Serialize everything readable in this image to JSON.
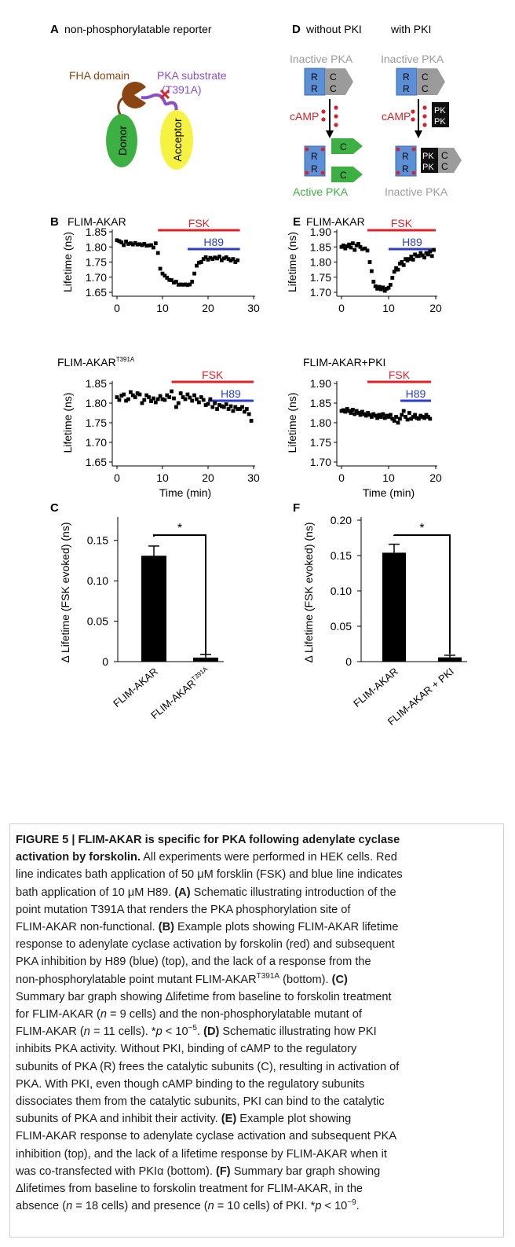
{
  "figure": {
    "panelA": {
      "letter": "A",
      "title": "non-phosphorylatable reporter",
      "fha_label": "FHA domain",
      "pka_label": "PKA substrate",
      "mutation_label": "(T391A)",
      "donor_label": "Donor",
      "acceptor_label": "Acceptor",
      "colors": {
        "donor": "#3cb043",
        "acceptor": "#f5f242",
        "fha": "#8b4513",
        "linker": "#8a4fc7",
        "mutation": "#d6232a"
      }
    },
    "panelD": {
      "letter": "D",
      "title_left": "without PKI",
      "title_right": "with PKI",
      "inactive_pka_left": "Inactive PKA",
      "inactive_pka_right": "Inactive PKA",
      "camp_left": "cAMP",
      "camp_right": "cAMP",
      "active_pka": "Active PKA",
      "inactive_pka_bottom": "Inactive PKA",
      "r_label": "R",
      "c_label": "C",
      "pk_label": "PK",
      "pki_label": "PKI",
      "colors": {
        "r_box": "#5b8fd6",
        "c_gray": "#9b9b9b",
        "c_green": "#3cb043",
        "pki_box": "#111111",
        "camp": "#d6232a",
        "active": "#3cb043",
        "inactive": "#9b9b9b"
      }
    },
    "panelB": {
      "letter": "B"
    },
    "panelE": {
      "letter": "E"
    },
    "panelC": {
      "letter": "C",
      "star": "*"
    },
    "panelF": {
      "letter": "F",
      "star": "*"
    },
    "colors": {
      "fsk": "#e0222b",
      "h89": "#2b3fc8"
    }
  },
  "chart_data": [
    {
      "id": "B-top",
      "type": "scatter",
      "title": "FLIM-AKAR",
      "ylabel": "Lifetime (ns)",
      "xlabel": "",
      "xlim": [
        0,
        30
      ],
      "ylim": [
        1.65,
        1.85
      ],
      "xticks": [
        "0",
        "10",
        "20",
        "30"
      ],
      "yticks": [
        "1.65",
        "1.70",
        "1.75",
        "1.80",
        "1.85"
      ],
      "bars": [
        {
          "label": "FSK",
          "from": 9,
          "to": 27
        },
        {
          "label": "H89",
          "from": 15.5,
          "to": 27
        }
      ],
      "x": [
        0,
        0.5,
        1,
        1.5,
        2,
        2.5,
        3,
        3.5,
        4,
        4.5,
        5,
        5.5,
        6,
        6.5,
        7,
        7.5,
        8,
        8.5,
        9,
        9.5,
        10,
        10.5,
        11,
        11.5,
        12,
        12.5,
        13,
        13.5,
        14,
        14.5,
        15,
        15.5,
        16,
        16.5,
        17,
        17.5,
        18,
        18.5,
        19,
        19.5,
        20,
        20.5,
        21,
        21.5,
        22,
        22.5,
        23,
        23.5,
        24,
        24.5,
        25,
        25.5,
        26,
        26.5
      ],
      "y": [
        1.822,
        1.819,
        1.815,
        1.806,
        1.818,
        1.81,
        1.812,
        1.808,
        1.813,
        1.808,
        1.809,
        1.806,
        1.81,
        1.804,
        1.805,
        1.806,
        1.798,
        1.812,
        1.78,
        1.728,
        1.712,
        1.705,
        1.698,
        1.691,
        1.69,
        1.682,
        1.685,
        1.675,
        1.676,
        1.675,
        1.676,
        1.674,
        1.676,
        1.685,
        1.712,
        1.738,
        1.748,
        1.75,
        1.76,
        1.766,
        1.758,
        1.764,
        1.76,
        1.765,
        1.762,
        1.768,
        1.756,
        1.762,
        1.766,
        1.76,
        1.755,
        1.76,
        1.75,
        1.756
      ]
    },
    {
      "id": "B-bottom",
      "type": "scatter",
      "title": "FLIM-AKAR",
      "title_sup": "T391A",
      "ylabel": "Lifetime (ns)",
      "xlabel": "Time (min)",
      "xlim": [
        0,
        30
      ],
      "ylim": [
        1.65,
        1.85
      ],
      "xticks": [
        "0",
        "10",
        "20",
        "30"
      ],
      "yticks": [
        "1.65",
        "1.70",
        "1.75",
        "1.80",
        "1.85"
      ],
      "bars": [
        {
          "label": "FSK",
          "from": 12,
          "to": 30
        },
        {
          "label": "H89",
          "from": 20,
          "to": 30
        }
      ],
      "x": [
        0,
        0.5,
        1,
        1.5,
        2,
        2.5,
        3,
        3.5,
        4,
        4.5,
        5,
        5.5,
        6,
        6.5,
        7,
        7.5,
        8,
        8.5,
        9,
        9.5,
        10,
        10.5,
        11,
        11.5,
        12,
        12.5,
        13,
        13.5,
        14,
        14.5,
        15,
        15.5,
        16,
        16.5,
        17,
        17.5,
        18,
        18.5,
        19,
        19.5,
        20,
        20.5,
        21,
        21.5,
        22,
        22.5,
        23,
        23.5,
        24,
        24.5,
        25,
        25.5,
        26,
        26.5,
        27,
        27.5,
        28,
        28.5,
        29,
        29.5
      ],
      "y": [
        1.815,
        1.808,
        1.819,
        1.822,
        1.806,
        1.81,
        1.828,
        1.82,
        1.815,
        1.825,
        1.822,
        1.8,
        1.808,
        1.82,
        1.815,
        1.805,
        1.812,
        1.802,
        1.81,
        1.818,
        1.81,
        1.808,
        1.82,
        1.815,
        1.83,
        1.812,
        1.79,
        1.8,
        1.825,
        1.815,
        1.81,
        1.822,
        1.814,
        1.806,
        1.82,
        1.81,
        1.802,
        1.815,
        1.808,
        1.795,
        1.798,
        1.81,
        1.79,
        1.8,
        1.785,
        1.795,
        1.792,
        1.79,
        1.797,
        1.785,
        1.792,
        1.78,
        1.79,
        1.785,
        1.785,
        1.79,
        1.778,
        1.785,
        1.772,
        1.755
      ]
    },
    {
      "id": "E-top",
      "type": "scatter",
      "title": "FLIM-AKAR",
      "ylabel": "Lifetime (ns)",
      "xlabel": "",
      "xlim": [
        0,
        20
      ],
      "ylim": [
        1.7,
        1.9
      ],
      "xticks": [
        "0",
        "10",
        "20"
      ],
      "yticks": [
        "1.70",
        "1.75",
        "1.80",
        "1.85",
        "1.90"
      ],
      "bars": [
        {
          "label": "FSK",
          "from": 5.5,
          "to": 20
        },
        {
          "label": "H89",
          "from": 10,
          "to": 20
        }
      ],
      "x": [
        0,
        0.4,
        0.8,
        1.2,
        1.6,
        2,
        2.4,
        2.8,
        3.2,
        3.6,
        4,
        4.4,
        5,
        5.5,
        6,
        6.4,
        6.8,
        7.2,
        7.6,
        8,
        8.4,
        8.8,
        9.2,
        9.6,
        10,
        10.4,
        10.8,
        11.2,
        11.6,
        12,
        12.4,
        12.8,
        13.2,
        13.6,
        14,
        14.4,
        14.8,
        15.2,
        15.6,
        16,
        16.4,
        16.8,
        17.2,
        17.6,
        18,
        18.4,
        18.8,
        19.2,
        19.6
      ],
      "y": [
        1.85,
        1.855,
        1.845,
        1.852,
        1.858,
        1.848,
        1.862,
        1.84,
        1.855,
        1.86,
        1.85,
        1.843,
        1.845,
        1.838,
        1.8,
        1.77,
        1.735,
        1.72,
        1.712,
        1.718,
        1.71,
        1.716,
        1.705,
        1.712,
        1.715,
        1.725,
        1.748,
        1.768,
        1.78,
        1.775,
        1.795,
        1.8,
        1.79,
        1.81,
        1.805,
        1.81,
        1.818,
        1.808,
        1.825,
        1.82,
        1.82,
        1.83,
        1.822,
        1.815,
        1.83,
        1.825,
        1.835,
        1.82,
        1.84
      ]
    },
    {
      "id": "E-bottom",
      "type": "scatter",
      "title": "FLIM-AKAR+PKI",
      "ylabel": "Lifetime (ns)",
      "xlabel": "Time (min)",
      "xlim": [
        0,
        20
      ],
      "ylim": [
        1.7,
        1.9
      ],
      "xticks": [
        "0",
        "10",
        "20"
      ],
      "yticks": [
        "1.70",
        "1.75",
        "1.80",
        "1.85",
        "1.90"
      ],
      "bars": [
        {
          "label": "FSK",
          "from": 5.5,
          "to": 19
        },
        {
          "label": "H89",
          "from": 12.5,
          "to": 19
        }
      ],
      "x": [
        0,
        0.4,
        0.8,
        1.2,
        1.6,
        2,
        2.4,
        2.8,
        3.2,
        3.6,
        4,
        4.4,
        4.8,
        5.2,
        5.6,
        6,
        6.4,
        6.8,
        7.2,
        7.6,
        8,
        8.4,
        8.8,
        9.2,
        9.6,
        10,
        10.4,
        10.8,
        11.2,
        11.6,
        12,
        12.4,
        12.8,
        13.2,
        13.6,
        14,
        14.4,
        14.8,
        15.2,
        15.6,
        16,
        16.4,
        16.8,
        17.2,
        17.6,
        18,
        18.4,
        18.8
      ],
      "y": [
        1.83,
        1.832,
        1.828,
        1.835,
        1.83,
        1.825,
        1.833,
        1.822,
        1.83,
        1.825,
        1.82,
        1.828,
        1.822,
        1.818,
        1.825,
        1.82,
        1.815,
        1.822,
        1.818,
        1.812,
        1.82,
        1.815,
        1.822,
        1.812,
        1.818,
        1.815,
        1.82,
        1.81,
        1.805,
        1.815,
        1.8,
        1.81,
        1.82,
        1.83,
        1.815,
        1.808,
        1.825,
        1.81,
        1.815,
        1.82,
        1.812,
        1.81,
        1.818,
        1.815,
        1.812,
        1.82,
        1.815,
        1.81
      ]
    },
    {
      "id": "C",
      "type": "bar",
      "ylabel": "Δ Lifetime (FSK evoked) (ns)",
      "categories": [
        "FLIM-AKAR",
        "FLIM-AKAR"
      ],
      "category_sup": [
        "",
        "T391A"
      ],
      "values": [
        0.131,
        0.005
      ],
      "errors": [
        0.012,
        0.004
      ],
      "ylim": [
        0,
        0.175
      ],
      "yticks": [
        "0",
        "0.05",
        "0.10",
        "0.15"
      ],
      "ytick_values": [
        0,
        0.05,
        0.1,
        0.15
      ]
    },
    {
      "id": "F",
      "type": "bar",
      "ylabel": "Δ Lifetime (FSK evoked) (ns)",
      "categories": [
        "FLIM-AKAR",
        "FLIM-AKAR + PKI"
      ],
      "category_sup": [
        "",
        ""
      ],
      "values": [
        0.154,
        0.006
      ],
      "errors": [
        0.012,
        0.003
      ],
      "ylim": [
        0,
        0.2
      ],
      "yticks": [
        "0",
        "0.05",
        "0.10",
        "0.15",
        "0.20"
      ],
      "ytick_values": [
        0,
        0.05,
        0.1,
        0.15,
        0.2
      ]
    }
  ],
  "caption": {
    "title": "FIGURE 5 | FLIM-AKAR is specific for PKA following adenylate cyclase",
    "title_cont": "activation by forskolin.",
    "lines": [
      [
        {
          "t": " All experiments were performed in HEK cells. Red"
        }
      ],
      [
        {
          "t": "line indicates bath application of 50 μM forsklin (FSK) and blue line indicates"
        }
      ],
      [
        {
          "t": "bath application of 10 μM H89. "
        },
        {
          "t": "(A)",
          "b": true
        },
        {
          "t": " Schematic illustrating introduction of the"
        }
      ],
      [
        {
          "t": "point mutation T391A that renders the PKA phosphorylation site of"
        }
      ],
      [
        {
          "t": "FLIM-AKAR non-functional. "
        },
        {
          "t": "(B)",
          "b": true
        },
        {
          "t": " Example plots showing FLIM-AKAR lifetime"
        }
      ],
      [
        {
          "t": "response to adenylate cyclase activation by forskolin (red) and subsequent"
        }
      ],
      [
        {
          "t": "PKA inhibition by H89 (blue) (top), and the lack of a response from the"
        }
      ],
      [
        {
          "t": "non-phosphorylatable point mutant FLIM-AKAR"
        },
        {
          "t": "T391A",
          "sup": true
        },
        {
          "t": " (bottom). "
        },
        {
          "t": "(C)",
          "b": true
        }
      ],
      [
        {
          "t": "Summary bar graph showing Δlifetime from baseline to forskolin treatment"
        }
      ],
      [
        {
          "t": "for FLIM-AKAR ("
        },
        {
          "t": "n",
          "i": true
        },
        {
          "t": " = 9 cells) and the non-phosphorylatable mutant of"
        }
      ],
      [
        {
          "t": "FLIM-AKAR ("
        },
        {
          "t": "n",
          "i": true
        },
        {
          "t": " = 11 cells). *"
        },
        {
          "t": "p",
          "i": true
        },
        {
          "t": " < 10"
        },
        {
          "t": "−5",
          "sup": true
        },
        {
          "t": ". "
        },
        {
          "t": "(D)",
          "b": true
        },
        {
          "t": " Schematic illustrating how PKI"
        }
      ],
      [
        {
          "t": "inhibits PKA activity. Without PKI, binding of cAMP to the regulatory"
        }
      ],
      [
        {
          "t": "subunits of PKA (R) frees the catalytic subunits (C), resulting in activation of"
        }
      ],
      [
        {
          "t": "PKA. With PKI, even though cAMP binding to the regulatory subunits"
        }
      ],
      [
        {
          "t": "dissociates them from the catalytic subunits, PKI can bind to the catalytic"
        }
      ],
      [
        {
          "t": "subunits of PKA and inhibit their activity. "
        },
        {
          "t": "(E)",
          "b": true
        },
        {
          "t": " Example plot showing"
        }
      ],
      [
        {
          "t": "FLIM-AKAR response to adenylate cyclase activation and subsequent PKA"
        }
      ],
      [
        {
          "t": "inhibition (top), and the lack of a lifetime response by FLIM-AKAR when it"
        }
      ],
      [
        {
          "t": "was co-transfected with PKIα (bottom). "
        },
        {
          "t": "(F)",
          "b": true
        },
        {
          "t": " Summary bar graph showing"
        }
      ],
      [
        {
          "t": "Δlifetimes from baseline to forskolin treatment for FLIM-AKAR, in the"
        }
      ],
      [
        {
          "t": "absence ("
        },
        {
          "t": "n",
          "i": true
        },
        {
          "t": " = 18 cells) and presence ("
        },
        {
          "t": "n",
          "i": true
        },
        {
          "t": " = 10 cells) of PKI. *"
        },
        {
          "t": "p",
          "i": true
        },
        {
          "t": " < 10"
        },
        {
          "t": "−9",
          "sup": true
        },
        {
          "t": "."
        }
      ]
    ]
  }
}
